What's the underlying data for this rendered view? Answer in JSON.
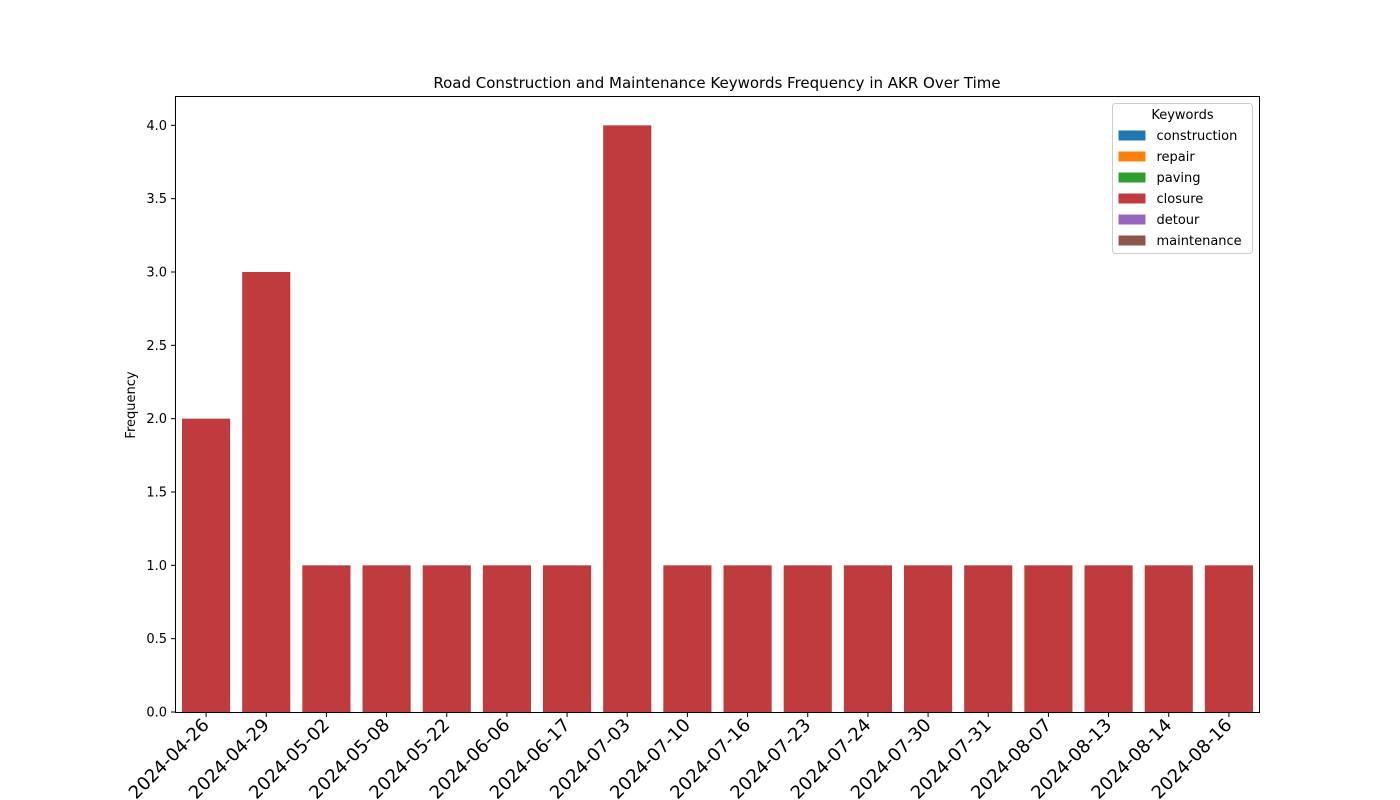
{
  "chart_data": {
    "type": "bar",
    "title": "Road Construction and Maintenance Keywords Frequency in AKR Over Time",
    "xlabel": "",
    "ylabel": "Frequency",
    "ylim": [
      0,
      4.2
    ],
    "yticks": [
      0.0,
      0.5,
      1.0,
      1.5,
      2.0,
      2.5,
      3.0,
      3.5,
      4.0
    ],
    "ytick_labels": [
      "0.0",
      "0.5",
      "1.0",
      "1.5",
      "2.0",
      "2.5",
      "3.0",
      "3.5",
      "4.0"
    ],
    "categories": [
      "2024-04-26",
      "2024-04-29",
      "2024-05-02",
      "2024-05-08",
      "2024-05-22",
      "2024-06-06",
      "2024-06-17",
      "2024-07-03",
      "2024-07-10",
      "2024-07-16",
      "2024-07-23",
      "2024-07-24",
      "2024-07-30",
      "2024-07-31",
      "2024-08-07",
      "2024-08-13",
      "2024-08-14",
      "2024-08-16"
    ],
    "series": [
      {
        "name": "construction",
        "color": "#1f77b4",
        "values": [
          0,
          0,
          0,
          0,
          0,
          0,
          0,
          0,
          0,
          0,
          0,
          0,
          0,
          0,
          0,
          0,
          0,
          0
        ]
      },
      {
        "name": "repair",
        "color": "#ff7f0e",
        "values": [
          0,
          0,
          0,
          0,
          0,
          0,
          0,
          0,
          0,
          0,
          0,
          0,
          0,
          0,
          0,
          0,
          0,
          0
        ]
      },
      {
        "name": "paving",
        "color": "#2ca02c",
        "values": [
          0,
          0,
          0,
          0,
          0,
          0,
          0,
          0,
          0,
          0,
          0,
          0,
          0,
          0,
          0,
          0,
          0,
          0
        ]
      },
      {
        "name": "closure",
        "color": "#c03b3d",
        "values": [
          2,
          3,
          1,
          1,
          1,
          1,
          1,
          4,
          1,
          1,
          1,
          1,
          1,
          1,
          1,
          1,
          1,
          1
        ]
      },
      {
        "name": "detour",
        "color": "#9467bd",
        "values": [
          0,
          0,
          0,
          0,
          0,
          0,
          0,
          0,
          0,
          0,
          0,
          0,
          0,
          0,
          0,
          0,
          0,
          0
        ]
      },
      {
        "name": "maintenance",
        "color": "#8c564b",
        "values": [
          0,
          0,
          0,
          0,
          0,
          0,
          0,
          0,
          0,
          0,
          0,
          0,
          0,
          0,
          0,
          0,
          0,
          0
        ]
      }
    ],
    "legend": {
      "title": "Keywords",
      "placement": "top-right"
    },
    "grid": false
  }
}
